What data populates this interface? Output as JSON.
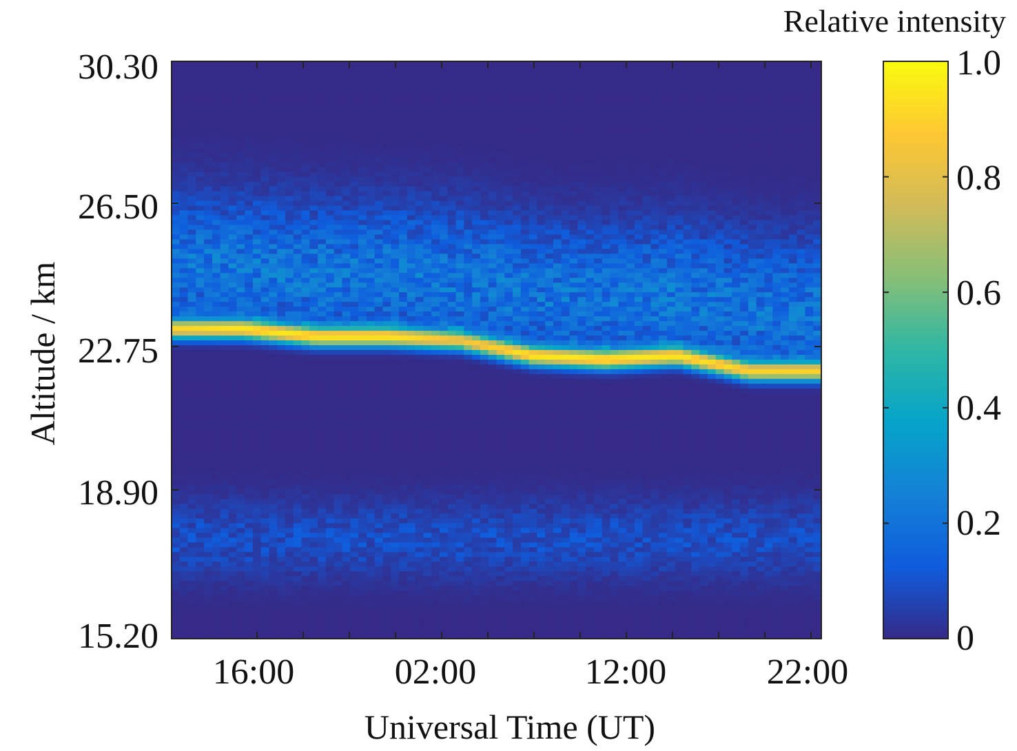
{
  "chart_data": {
    "type": "heatmap",
    "title": "",
    "xlabel": "Universal Time (UT)",
    "ylabel": "Altitude / km",
    "x_ticks": [
      "16:00",
      "02:00",
      "12:00",
      "22:00"
    ],
    "y_ticks": [
      "30.30",
      "26.50",
      "22.75",
      "18.90",
      "15.20"
    ],
    "ylim": [
      15.2,
      30.3
    ],
    "colorbar": {
      "label": "Relative intensity",
      "ticks": [
        "1.0",
        "0.8",
        "0.6",
        "0.4",
        "0.2",
        "0"
      ],
      "range": [
        0,
        1.0
      ],
      "colormap": "parula",
      "colors": [
        "#352a87",
        "#0f5cdd",
        "#1481d6",
        "#06a4ca",
        "#2eb7a4",
        "#87bf77",
        "#d1bb59",
        "#fec832",
        "#f9fb0e"
      ]
    },
    "layer": {
      "description_points": [
        {
          "x": "14:00",
          "peak_altitude_km": 23.3,
          "intensity": 0.9
        },
        {
          "x": "16:00",
          "peak_altitude_km": 23.3,
          "intensity": 0.95
        },
        {
          "x": "20:00",
          "peak_altitude_km": 23.1,
          "intensity": 0.95
        },
        {
          "x": "02:00",
          "peak_altitude_km": 23.1,
          "intensity": 0.95
        },
        {
          "x": "05:00",
          "peak_altitude_km": 23.0,
          "intensity": 0.85
        },
        {
          "x": "08:00",
          "peak_altitude_km": 22.6,
          "intensity": 0.95
        },
        {
          "x": "12:00",
          "peak_altitude_km": 22.5,
          "intensity": 0.95
        },
        {
          "x": "16:00",
          "peak_altitude_km": 22.6,
          "intensity": 0.95
        },
        {
          "x": "18:00",
          "peak_altitude_km": 22.2,
          "intensity": 0.9
        },
        {
          "x": "22:00",
          "peak_altitude_km": 22.2,
          "intensity": 0.9
        }
      ],
      "background_intensity": 0.0,
      "upper_diffuse_intensity": 0.2,
      "lower_diffuse_intensity": 0.1
    }
  }
}
